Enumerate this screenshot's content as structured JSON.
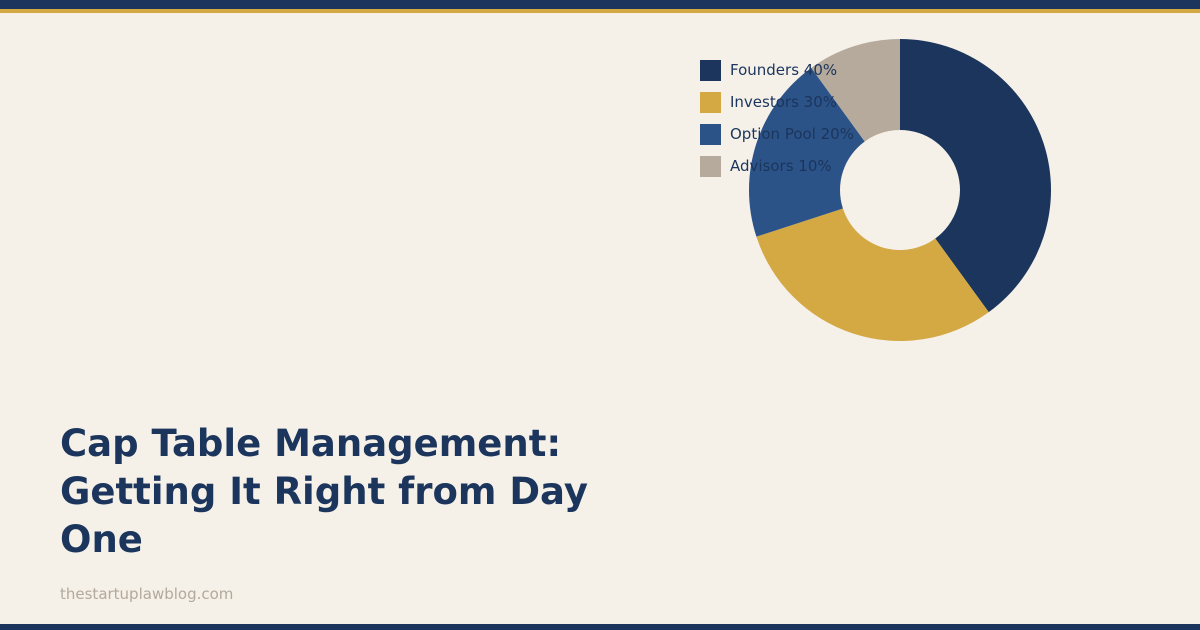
{
  "colors": {
    "background": "#f5f0e8",
    "navy": "#1b355c",
    "gold": "#d4a843",
    "muted_text": "#b3a99c"
  },
  "title": "Cap Table Management: Getting It Right from Day One",
  "site": "thestartuplawblog.com",
  "chart_data": {
    "type": "pie",
    "style": "donut",
    "start_angle_deg": 0,
    "direction": "clockwise",
    "legend_position": "top-left of chart",
    "slices": [
      {
        "label": "Founders 40%",
        "name": "Founders",
        "value": 40,
        "color": "#1b355c"
      },
      {
        "label": "Investors 30%",
        "name": "Investors",
        "value": 30,
        "color": "#d4a843"
      },
      {
        "label": "Option Pool 20%",
        "name": "Option Pool",
        "value": 20,
        "color": "#2c5388"
      },
      {
        "label": "Advisors 10%",
        "name": "Advisors",
        "value": 10,
        "color": "#b5aa9c"
      }
    ]
  }
}
